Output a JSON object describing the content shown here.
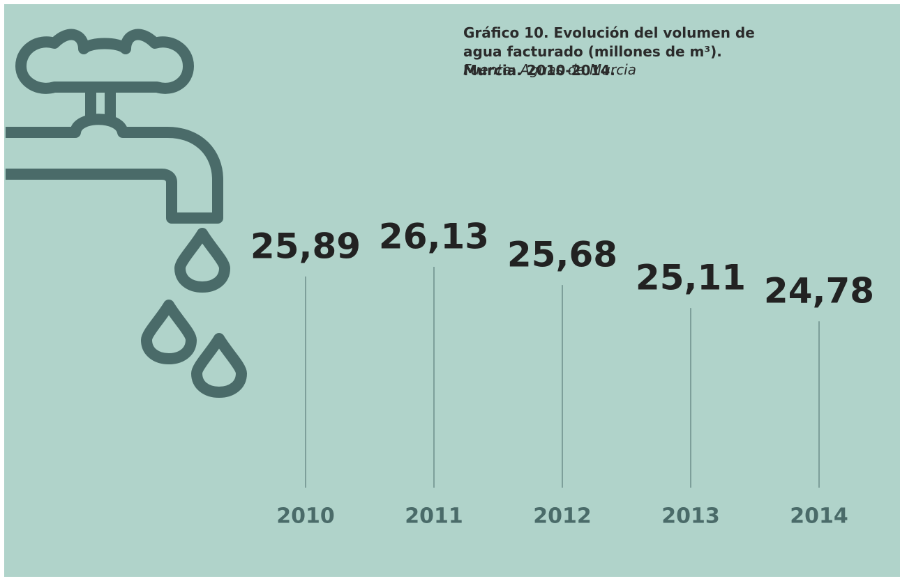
{
  "chart_data": {
    "type": "lollipop",
    "title": "Gráfico 10. Evolución del volumen de agua facturado (millones de m³). Murcia. 2010-2014.",
    "subtitle": "Fuente: Aguas de Murcia",
    "categories": [
      "2010",
      "2011",
      "2012",
      "2013",
      "2014"
    ],
    "values": [
      25.89,
      26.13,
      25.68,
      25.11,
      24.78
    ],
    "value_labels": [
      "25,89",
      "26,13",
      "25,68",
      "25,11",
      "24,78"
    ],
    "ylim": [
      20.66,
      26.13
    ],
    "color": "#4a6b69"
  }
}
